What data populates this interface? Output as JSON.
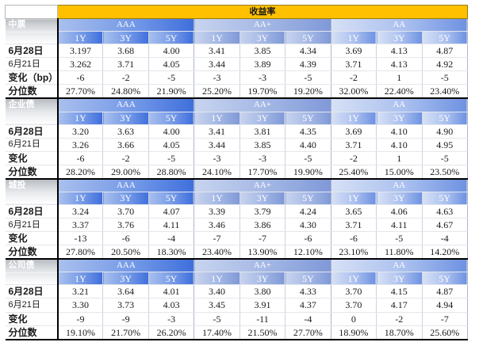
{
  "header": {
    "title": "收益率"
  },
  "sections": [
    {
      "name": "中票",
      "groups": [
        "AAA",
        "AA+",
        "AA"
      ],
      "tenors": [
        "1Y",
        "3Y",
        "5Y",
        "1Y",
        "3Y",
        "5Y",
        "1Y",
        "3Y",
        "5Y"
      ],
      "rows": [
        {
          "label": "6月28日",
          "values": [
            "3.197",
            "3.68",
            "4.00",
            "3.41",
            "3.85",
            "4.34",
            "3.69",
            "4.13",
            "4.87"
          ]
        },
        {
          "label": "6月21日",
          "values": [
            "3.262",
            "3.71",
            "4.05",
            "3.44",
            "3.89",
            "4.39",
            "3.71",
            "4.13",
            "4.92"
          ]
        },
        {
          "label": "变化（bp）",
          "values": [
            "-6",
            "-2",
            "-5",
            "-3",
            "-3",
            "-5",
            "-2",
            "1",
            "-5"
          ]
        },
        {
          "label": "分位数",
          "values": [
            "27.70%",
            "24.80%",
            "21.90%",
            "25.20%",
            "19.70%",
            "19.20%",
            "32.00%",
            "22.40%",
            "23.40%"
          ]
        }
      ]
    },
    {
      "name": "企业债",
      "groups": [
        "AAA",
        "AA+",
        "AA"
      ],
      "tenors": [
        "1Y",
        "3Y",
        "5Y",
        "1Y",
        "3Y",
        "5Y",
        "1Y",
        "3Y",
        "5Y"
      ],
      "rows": [
        {
          "label": "6月28日",
          "values": [
            "3.20",
            "3.63",
            "4.00",
            "3.41",
            "3.81",
            "4.35",
            "3.69",
            "4.10",
            "4.90"
          ]
        },
        {
          "label": "6月21日",
          "values": [
            "3.26",
            "3.66",
            "4.05",
            "3.44",
            "3.85",
            "4.40",
            "3.71",
            "4.10",
            "4.95"
          ]
        },
        {
          "label": "变化",
          "values": [
            "-6",
            "-2",
            "-5",
            "-3",
            "-3",
            "-5",
            "-2",
            "1",
            "-5"
          ]
        },
        {
          "label": "分位数",
          "values": [
            "28.20%",
            "29.00%",
            "28.80%",
            "24.10%",
            "17.70%",
            "19.90%",
            "25.40%",
            "15.00%",
            "23.50%"
          ]
        }
      ]
    },
    {
      "name": "城投",
      "groups": [
        "AAA",
        "AA+",
        "AA"
      ],
      "tenors": [
        "1Y",
        "3Y",
        "5Y",
        "1Y",
        "3Y",
        "5Y",
        "1Y",
        "3Y",
        "5Y"
      ],
      "rows": [
        {
          "label": "6月28日",
          "values": [
            "3.24",
            "3.70",
            "4.07",
            "3.39",
            "3.79",
            "4.24",
            "3.65",
            "4.06",
            "4.63"
          ]
        },
        {
          "label": "6月21日",
          "values": [
            "3.37",
            "3.76",
            "4.11",
            "3.46",
            "3.86",
            "4.30",
            "3.71",
            "4.11",
            "4.67"
          ]
        },
        {
          "label": "变化",
          "values": [
            "-13",
            "-6",
            "-4",
            "-7",
            "-7",
            "-6",
            "-6",
            "-5",
            "-4"
          ]
        },
        {
          "label": "分位数",
          "values": [
            "27.80%",
            "20.50%",
            "18.30%",
            "23.40%",
            "13.90%",
            "12.10%",
            "23.10%",
            "11.80%",
            "14.20%"
          ]
        }
      ]
    },
    {
      "name": "公司债",
      "groups": [
        "AAA",
        "AA+",
        "AA"
      ],
      "tenors": [
        "1Y",
        "3Y",
        "5Y",
        "1Y",
        "3Y",
        "5Y",
        "1Y",
        "3Y",
        "5Y"
      ],
      "rows": [
        {
          "label": "6月28日",
          "values": [
            "3.21",
            "3.64",
            "4.01",
            "3.40",
            "3.80",
            "4.33",
            "3.70",
            "4.15",
            "4.87"
          ]
        },
        {
          "label": "6月21日",
          "values": [
            "3.30",
            "3.73",
            "4.03",
            "3.45",
            "3.91",
            "4.37",
            "3.70",
            "4.17",
            "4.94"
          ]
        },
        {
          "label": "变化",
          "values": [
            "-9",
            "-9",
            "-3",
            "-5",
            "-11",
            "-4",
            "0",
            "-2",
            "-7"
          ]
        },
        {
          "label": "分位数",
          "values": [
            "19.10%",
            "21.70%",
            "26.20%",
            "17.40%",
            "21.50%",
            "27.70%",
            "18.90%",
            "18.70%",
            "25.60%"
          ]
        }
      ]
    }
  ],
  "colors": {
    "title_bg": "#ffc000",
    "aaa": "#3f6fdc",
    "aa_plus": "#9eb3e3",
    "aa": "#6e92e2"
  }
}
